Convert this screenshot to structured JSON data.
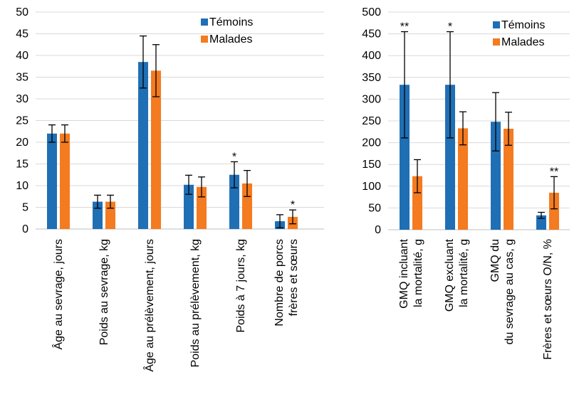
{
  "chart_data": [
    {
      "type": "bar",
      "categories": [
        [
          "Âge au sevrage, jours"
        ],
        [
          "Poids au sevrage,  kg"
        ],
        [
          "Âge au prélèvement, jours"
        ],
        [
          "Poids au prélèvement, kg"
        ],
        [
          "Poids à 7 jours, kg"
        ],
        [
          "Nombre de porcs",
          "frères et sœurs"
        ]
      ],
      "series": [
        {
          "name": "Témoins",
          "color": "#1f6fb5",
          "values": [
            22,
            6.3,
            38.5,
            10.2,
            12.5,
            1.8
          ],
          "errors": [
            2,
            1.5,
            6,
            2.2,
            3,
            1.5
          ]
        },
        {
          "name": "Malades",
          "color": "#f47b20",
          "values": [
            22,
            6.3,
            36.5,
            9.7,
            10.5,
            2.8
          ],
          "errors": [
            2,
            1.5,
            6,
            2.3,
            3,
            1.6
          ]
        }
      ],
      "ylim": [
        0,
        50
      ],
      "yticks": [
        0,
        5,
        10,
        15,
        20,
        25,
        30,
        35,
        40,
        45,
        50
      ],
      "grid": true,
      "legend": "top-right",
      "annotations": [
        {
          "text": "*",
          "category": 4
        },
        {
          "text": "*",
          "category": 5
        }
      ]
    },
    {
      "type": "bar",
      "categories": [
        [
          "GMQ incluant",
          "la mortalité, g"
        ],
        [
          "GMQ excluant",
          "la mortalité, g"
        ],
        [
          "GMQ du",
          "du sevrage au cas, g"
        ],
        [
          "Frères et sœurs O/N, %"
        ]
      ],
      "series": [
        {
          "name": "Témoins",
          "color": "#1f6fb5",
          "values": [
            333,
            333,
            248,
            33
          ],
          "errors": [
            122,
            122,
            67,
            7
          ]
        },
        {
          "name": "Malades",
          "color": "#f47b20",
          "values": [
            123,
            233,
            232,
            85
          ],
          "errors": [
            38,
            38,
            38,
            37
          ]
        }
      ],
      "ylim": [
        0,
        500
      ],
      "yticks": [
        0,
        50,
        100,
        150,
        200,
        250,
        300,
        350,
        400,
        450,
        500
      ],
      "grid": true,
      "legend": "top-right",
      "annotations": [
        {
          "text": "**",
          "category": 0
        },
        {
          "text": "*",
          "category": 1
        },
        {
          "text": "**",
          "category": 3
        }
      ]
    }
  ]
}
